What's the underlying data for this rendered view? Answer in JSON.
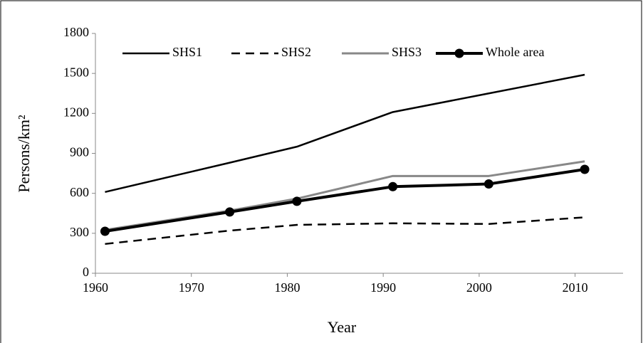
{
  "chart_data": {
    "type": "line",
    "x_label": "Year",
    "y_label": "Persons/km²",
    "x": [
      1961,
      1974,
      1981,
      1991,
      2001,
      2011
    ],
    "series": [
      {
        "name": "SHS1",
        "color": "#000000",
        "dash": false,
        "width": 2.5,
        "marker": false,
        "values": [
          610,
          830,
          950,
          1210,
          1350,
          1490
        ]
      },
      {
        "name": "SHS2",
        "color": "#000000",
        "dash": true,
        "width": 2.5,
        "marker": false,
        "values": [
          220,
          320,
          363,
          375,
          370,
          420
        ]
      },
      {
        "name": "SHS3",
        "color": "#888888",
        "dash": false,
        "width": 3,
        "marker": false,
        "values": [
          325,
          470,
          560,
          730,
          730,
          840
        ]
      },
      {
        "name": "Whole area",
        "color": "#000000",
        "dash": false,
        "width": 4,
        "marker": true,
        "values": [
          315,
          460,
          540,
          650,
          670,
          780
        ]
      }
    ],
    "xlim": [
      1960,
      2015
    ],
    "xticks": [
      1960,
      1970,
      1980,
      1990,
      2000,
      2010
    ],
    "ylim": [
      0,
      1800
    ],
    "yticks": [
      0,
      300,
      600,
      900,
      1200,
      1500,
      1800
    ],
    "grid": false,
    "legend": "top"
  }
}
